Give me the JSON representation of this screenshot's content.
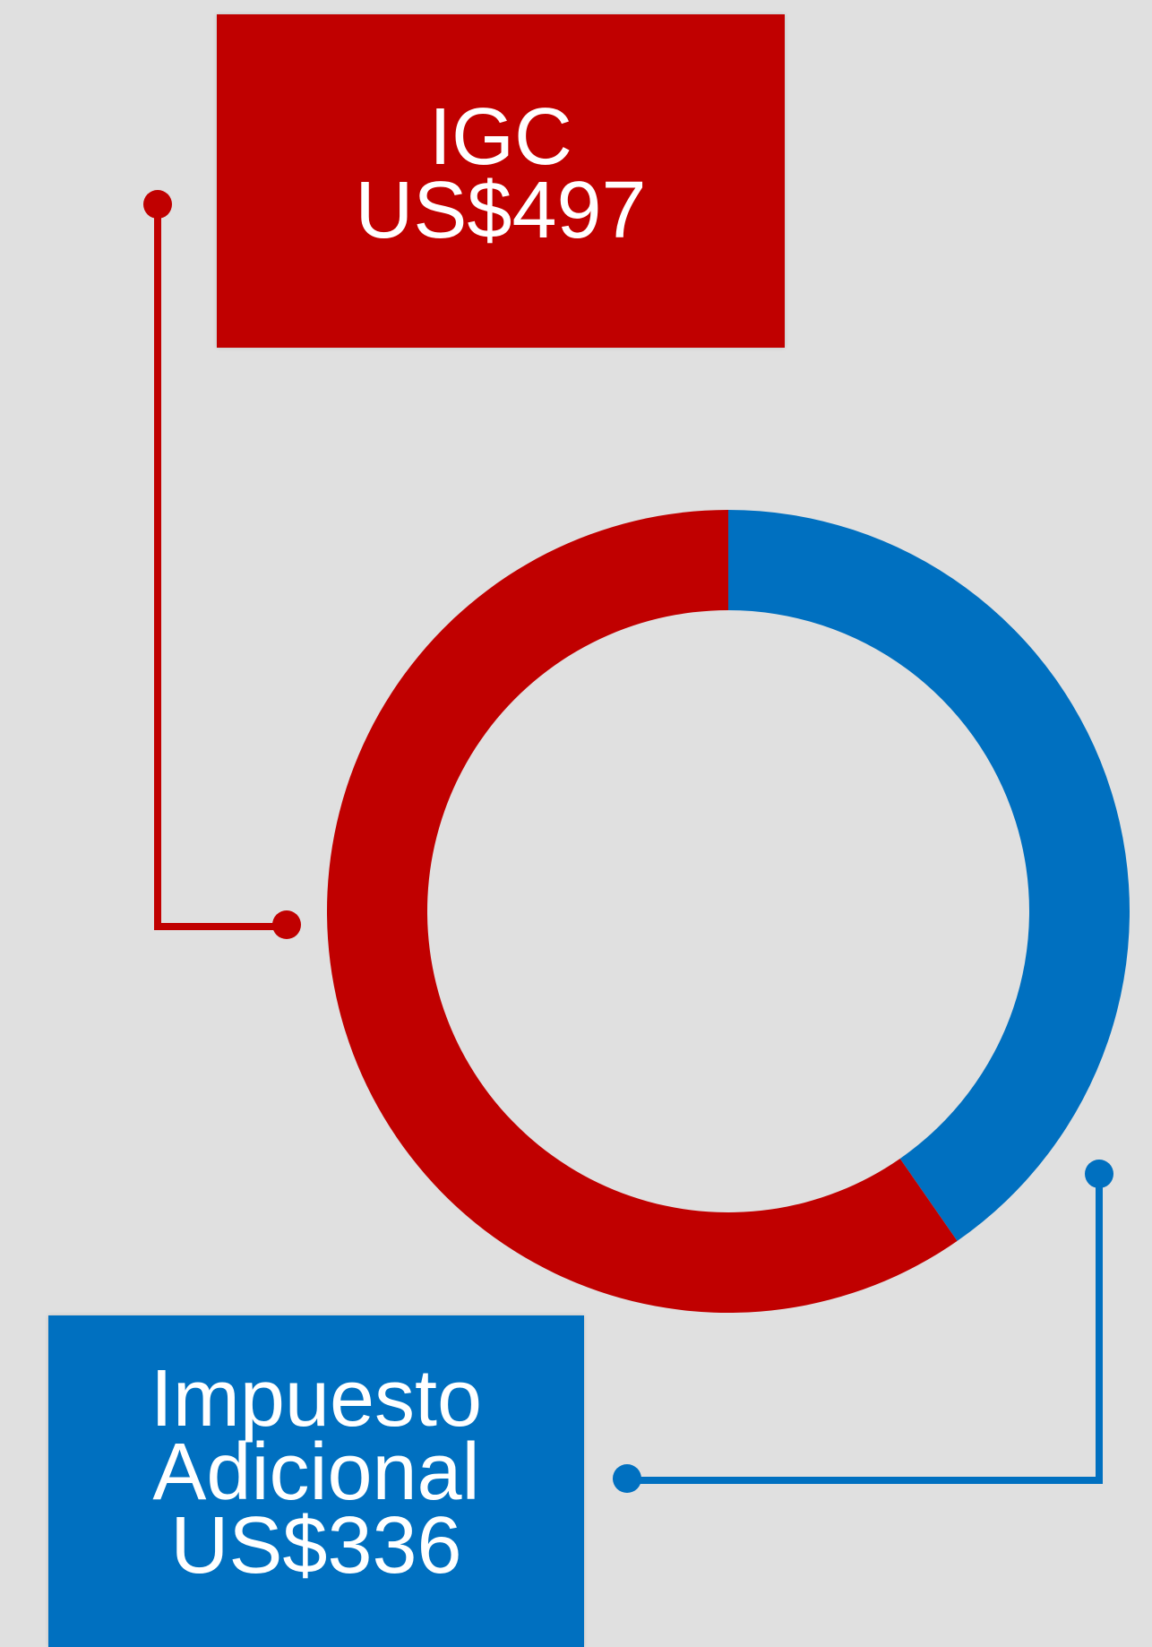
{
  "chart_data": {
    "type": "pie",
    "style": "donut",
    "categories": [
      "IGC",
      "Impuesto Adicional"
    ],
    "values": [
      497,
      336
    ],
    "value_labels": [
      "US$497",
      "US$336"
    ],
    "colors": [
      "#c00000",
      "#0070c0"
    ],
    "labels": [
      {
        "lines": [
          "IGC",
          "US$497"
        ]
      },
      {
        "lines": [
          "Impuesto",
          "Adicional",
          "US$336"
        ]
      }
    ]
  },
  "background": "#e0e0e0"
}
